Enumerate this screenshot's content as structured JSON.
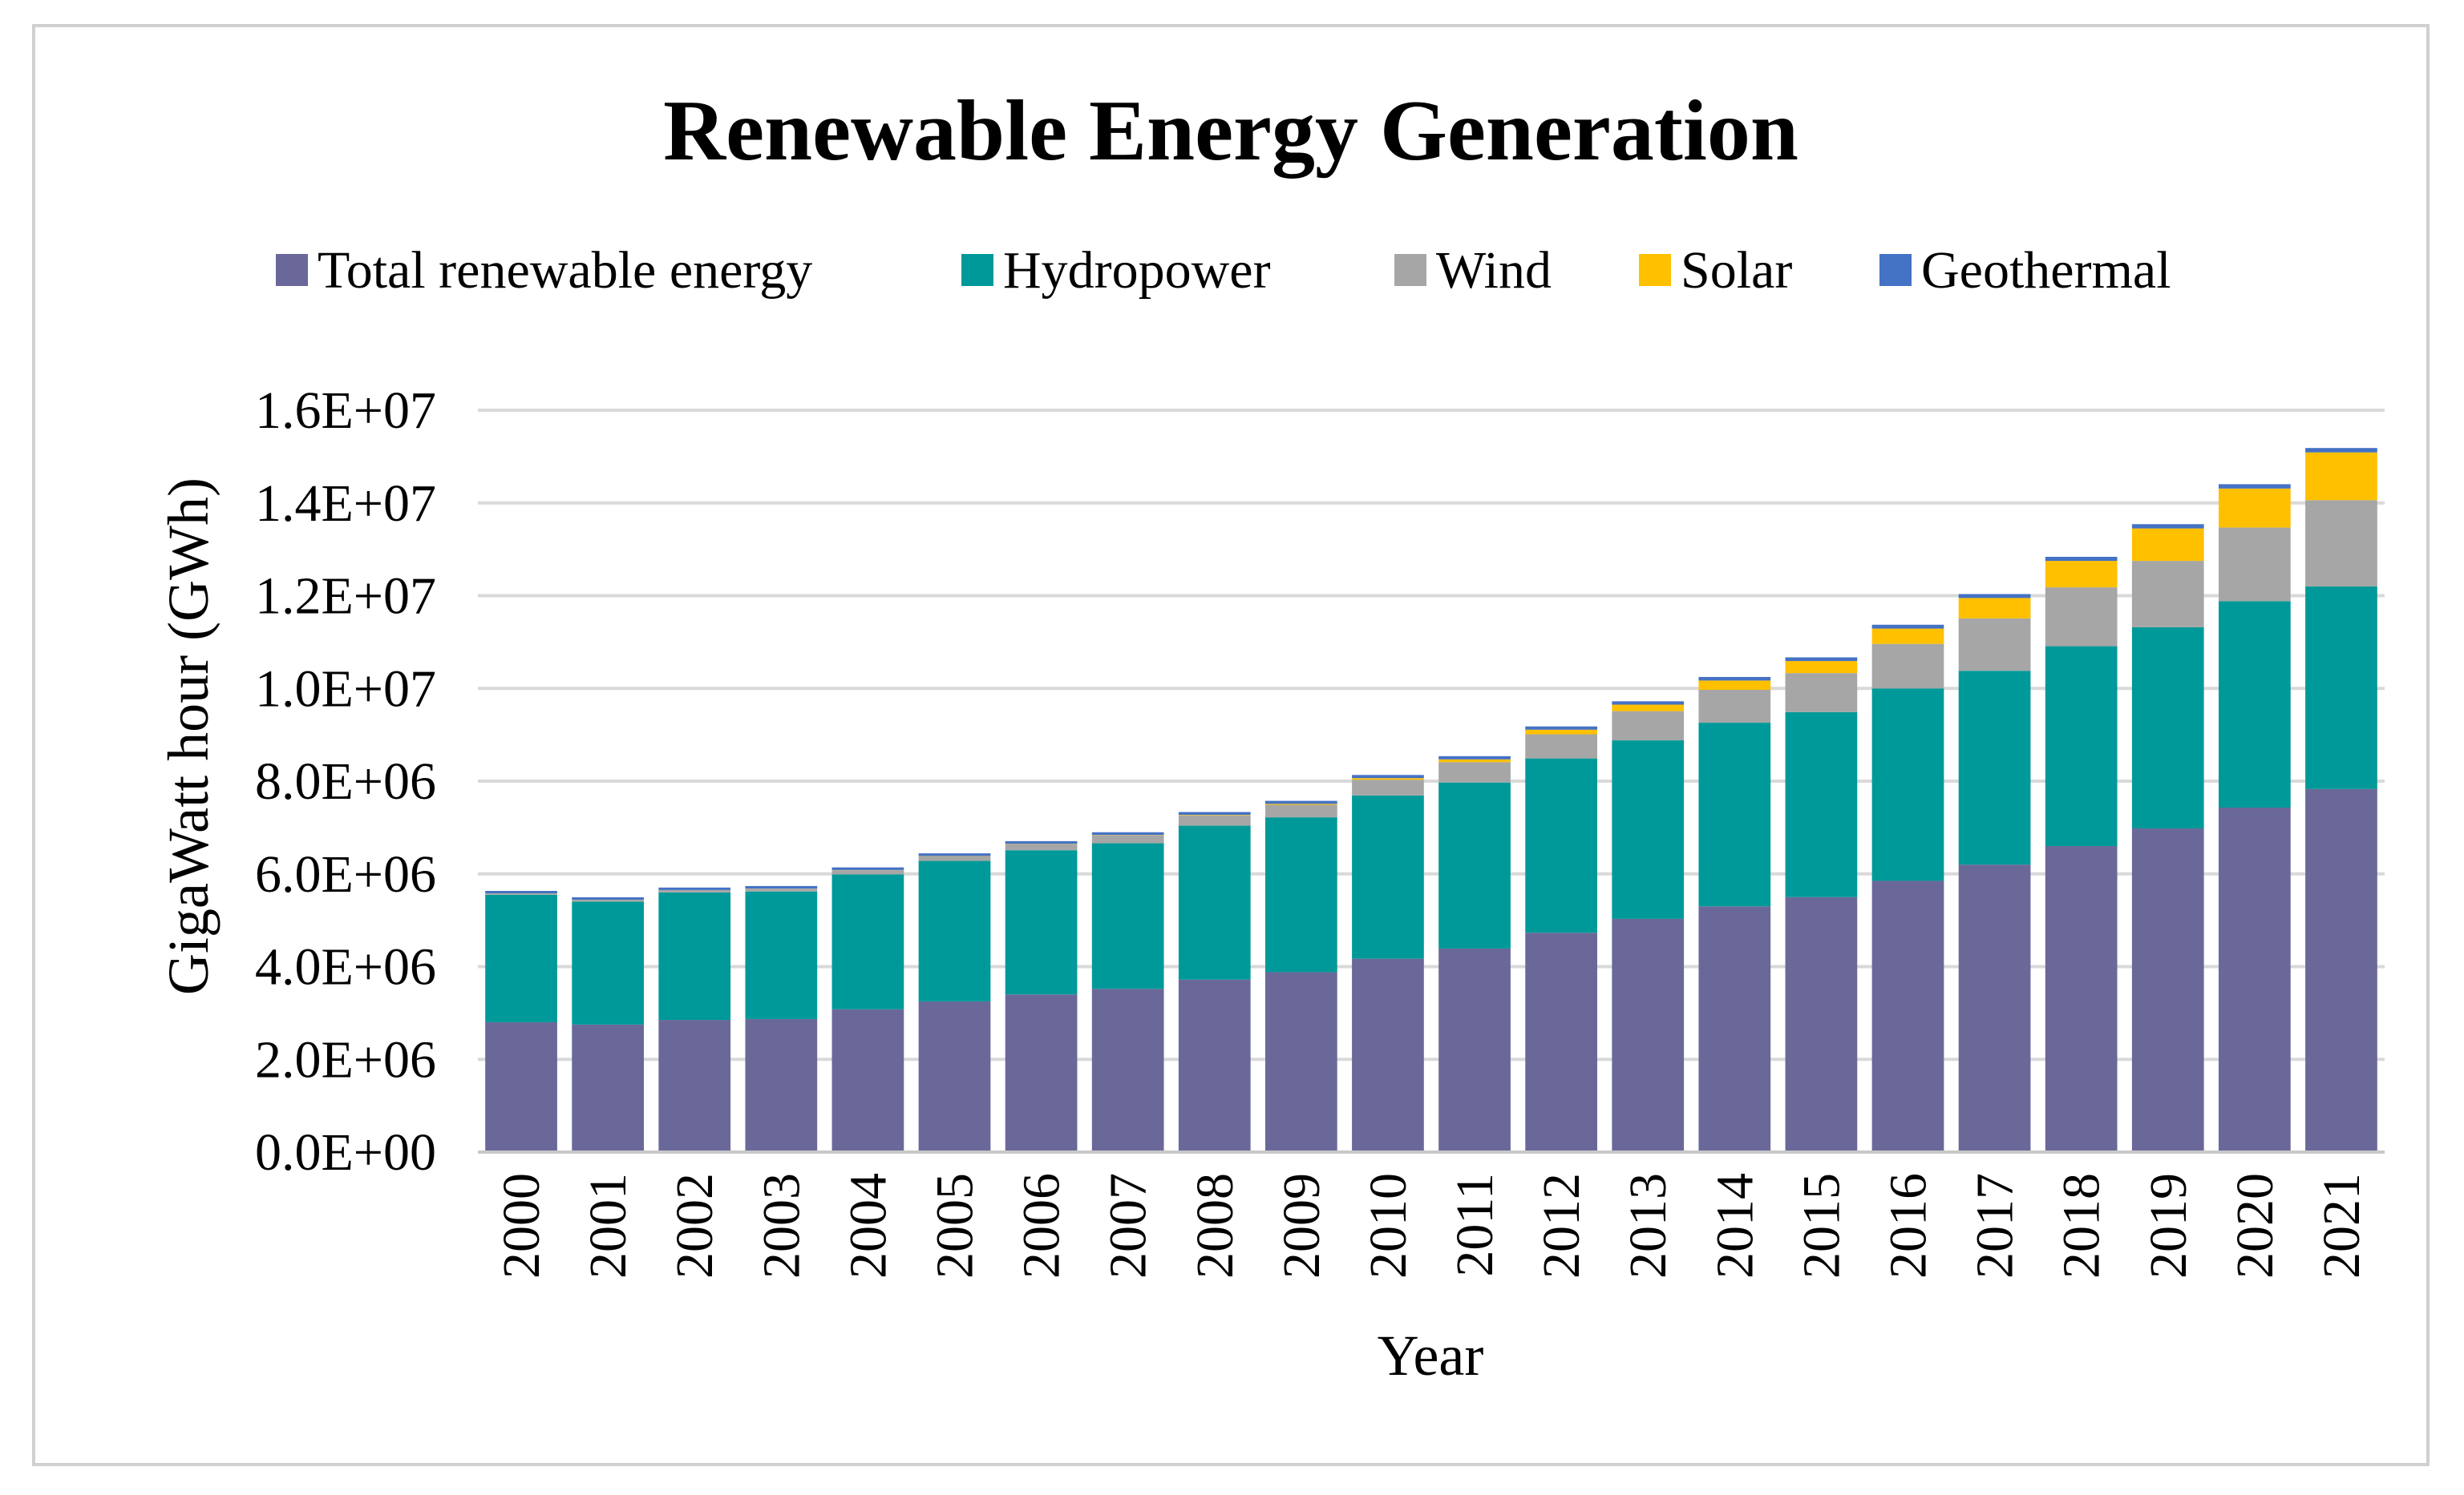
{
  "chart_data": {
    "type": "bar",
    "stacked": true,
    "title": "Renewable Energy Generation",
    "xlabel": "Year",
    "ylabel": "GigaWatt hour (GWh)",
    "ylim": [
      0,
      16000000
    ],
    "yticks": [
      0,
      2000000,
      4000000,
      6000000,
      8000000,
      10000000,
      12000000,
      14000000,
      16000000
    ],
    "ytick_labels": [
      "0.0E+00",
      "2.0E+06",
      "4.0E+06",
      "6.0E+06",
      "8.0E+06",
      "1.0E+07",
      "1.2E+07",
      "1.4E+07",
      "1.6E+07"
    ],
    "grid": true,
    "legend_position": "top",
    "categories": [
      "2000",
      "2001",
      "2002",
      "2003",
      "2004",
      "2005",
      "2006",
      "2007",
      "2008",
      "2009",
      "2010",
      "2011",
      "2012",
      "2013",
      "2014",
      "2015",
      "2016",
      "2017",
      "2018",
      "2019",
      "2020",
      "2021"
    ],
    "series": [
      {
        "name": "Total renewable energy",
        "color": "#6a6899",
        "values": [
          2800000,
          2750000,
          2850000,
          2870000,
          3080000,
          3250000,
          3400000,
          3520000,
          3720000,
          3880000,
          4170000,
          4390000,
          4730000,
          5030000,
          5300000,
          5500000,
          5850000,
          6200000,
          6600000,
          6980000,
          7430000,
          7830000
        ]
      },
      {
        "name": "Hydropower",
        "color": "#009999",
        "values": [
          2750000,
          2650000,
          2750000,
          2750000,
          2910000,
          3030000,
          3110000,
          3140000,
          3320000,
          3340000,
          3520000,
          3580000,
          3760000,
          3850000,
          3960000,
          3990000,
          4150000,
          4180000,
          4310000,
          4340000,
          4450000,
          4370000
        ]
      },
      {
        "name": "Wind",
        "color": "#a6a6a6",
        "values": [
          30000,
          40000,
          50000,
          60000,
          90000,
          100000,
          130000,
          170000,
          220000,
          270000,
          340000,
          440000,
          520000,
          630000,
          710000,
          840000,
          960000,
          1130000,
          1270000,
          1430000,
          1590000,
          1860000
        ]
      },
      {
        "name": "Solar",
        "color": "#ffc000",
        "values": [
          1000,
          2000,
          2000,
          3000,
          4000,
          5000,
          7000,
          8000,
          12000,
          20000,
          35000,
          60000,
          100000,
          140000,
          200000,
          260000,
          330000,
          440000,
          570000,
          700000,
          840000,
          1030000
        ]
      },
      {
        "name": "Geothermal",
        "color": "#4472c4",
        "values": [
          52000,
          53000,
          53000,
          55000,
          56000,
          58000,
          59000,
          60000,
          62000,
          65000,
          68000,
          69000,
          70000,
          72000,
          77000,
          80000,
          83000,
          85000,
          88000,
          92000,
          94000,
          95000
        ]
      }
    ]
  }
}
